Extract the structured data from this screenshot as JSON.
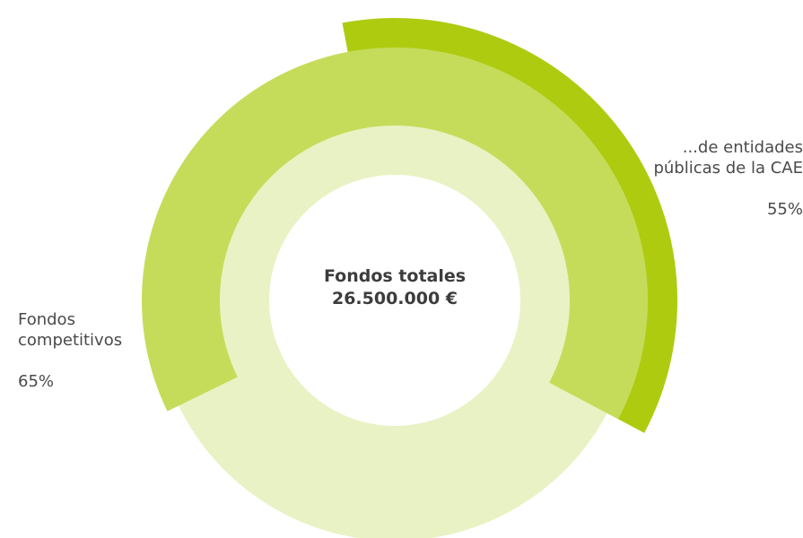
{
  "chart_data": {
    "type": "nested-donut",
    "center_title": "Fondos totales",
    "center_value": "26.500.000 €",
    "categories": [
      "Fondos competitivos",
      "...de entidades públicas de la CAE"
    ],
    "values": [
      65,
      55
    ],
    "value_labels": [
      "65%",
      "55%"
    ],
    "colors": [
      "#c5dc5a",
      "#aecb10"
    ],
    "base_color": "#e9f2c4"
  }
}
